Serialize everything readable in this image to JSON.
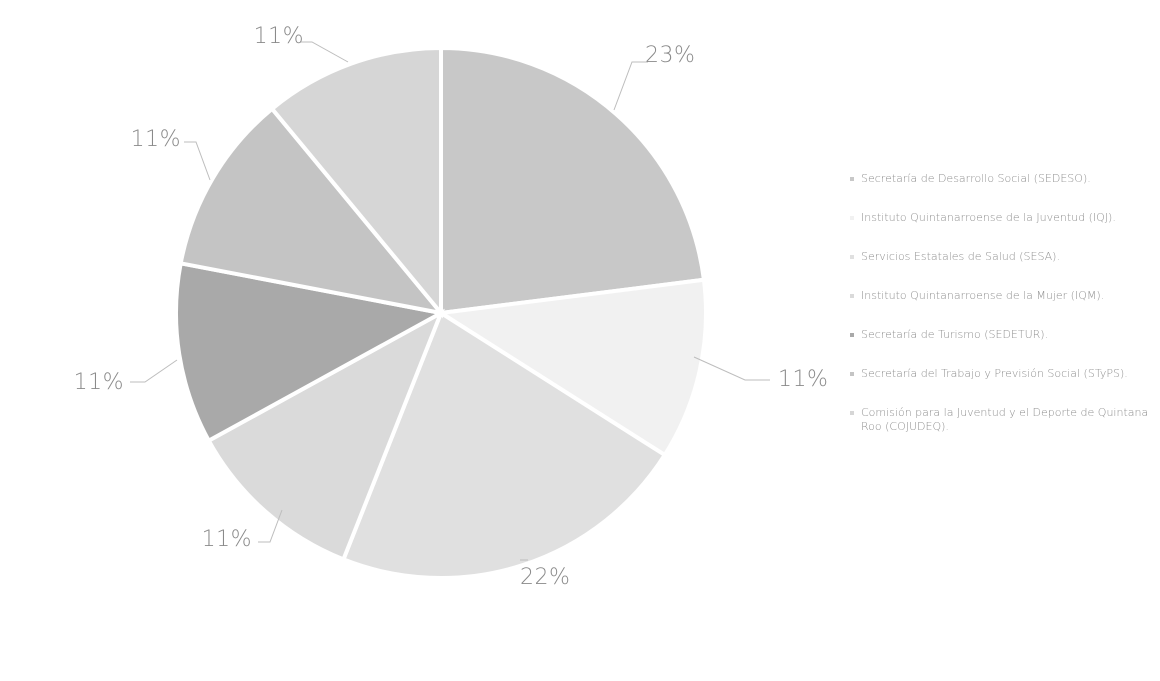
{
  "chart_data": {
    "type": "pie",
    "slices": [
      {
        "label": "Secretaría de Desarrollo Social (SEDESO).",
        "value": 23,
        "value_label": "23%",
        "color": "#c8c8c8"
      },
      {
        "label": "Instituto Quintanarroense de la Juventud (IQJ).",
        "value": 11,
        "value_label": "11%",
        "color": "#f1f1f1"
      },
      {
        "label": "Servicios Estatales de Salud (SESA).",
        "value": 22,
        "value_label": "22%",
        "color": "#e0e0e0"
      },
      {
        "label": "Instituto Quintanarroense de la Mujer (IQM).",
        "value": 11,
        "value_label": "11%",
        "color": "#dadada"
      },
      {
        "label": "Secretaría de Turismo (SEDETUR).",
        "value": 11,
        "value_label": "11%",
        "color": "#a9a9a9"
      },
      {
        "label": "Secretaría del Trabajo y Previsión Social (STyPS).",
        "value": 11,
        "value_label": "11%",
        "color": "#c4c4c4"
      },
      {
        "label": "Comisión para la Juventud y el Deporte de Quintana Roo (COJUDEQ).",
        "value": 11,
        "value_label": "11%",
        "color": "#d6d6d6"
      }
    ],
    "legend_position": "right"
  }
}
